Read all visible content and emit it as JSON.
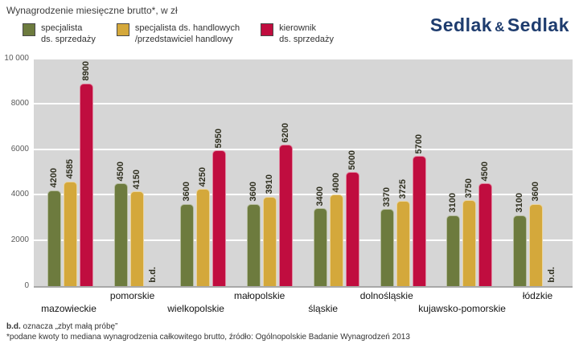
{
  "title": "Wynagrodzenie miesięczne brutto*, w zł",
  "logo": {
    "word1": "Sedlak",
    "amp": "&",
    "word2": "Sedlak",
    "color": "#1e3c6e"
  },
  "legend": [
    {
      "label": "specjalista\nds. sprzedaży",
      "color": "#6d7b3e"
    },
    {
      "label": "specjalista ds. handlowych\n/przedstawiciel handlowy",
      "color": "#d4a83b"
    },
    {
      "label": "kierownik\nds. sprzedaży",
      "color": "#c00d3f"
    }
  ],
  "footnotes": {
    "bd_term": "b.d.",
    "bd_rest": " oznacza „zbyt małą próbę”",
    "source": "*podane kwoty to mediana wynagrodzenia całkowitego brutto, źródło: Ogólnopolskie Badanie Wynagrodzeń 2013"
  },
  "colors": {
    "plot_background": "#d6d6d6",
    "gridline": "#ffffff",
    "series_specjalista": "#6d7b3e",
    "series_handlowy": "#d4a83b",
    "series_kierownik": "#c00d3f",
    "logo_navy": "#1e3c6e"
  },
  "chart_data": {
    "type": "bar",
    "title": "Wynagrodzenie miesięczne brutto*, w zł",
    "categories": [
      "mazowieckie",
      "pomorskie",
      "wielkopolskie",
      "małopolskie",
      "śląskie",
      "dolnośląskie",
      "kujawsko-pomorskie",
      "łódzkie"
    ],
    "series": [
      {
        "name": "specjalista ds. sprzedaży",
        "color": "#6d7b3e",
        "values": [
          4200,
          4500,
          3600,
          3600,
          3400,
          3370,
          3100,
          3100
        ]
      },
      {
        "name": "specjalista ds. handlowych / przedstawiciel handlowy",
        "color": "#d4a83b",
        "values": [
          4585,
          4150,
          4250,
          3910,
          4000,
          3725,
          3750,
          3600
        ]
      },
      {
        "name": "kierownik ds. sprzedaży",
        "color": "#c00d3f",
        "values": [
          8900,
          null,
          5950,
          6200,
          5000,
          5700,
          4500,
          null
        ]
      }
    ],
    "null_label": "b.d.",
    "ylim": [
      0,
      10000
    ],
    "yticks": [
      {
        "value": 0,
        "label": "0"
      },
      {
        "value": 2000,
        "label": "2000"
      },
      {
        "value": 4000,
        "label": "4000"
      },
      {
        "value": 6000,
        "label": "6000"
      },
      {
        "value": 8000,
        "label": "8000"
      },
      {
        "value": 10000,
        "label": "10 000"
      }
    ],
    "grid": true,
    "legend_position": "top-left",
    "value_labels": "rotated-90-above-bars"
  }
}
